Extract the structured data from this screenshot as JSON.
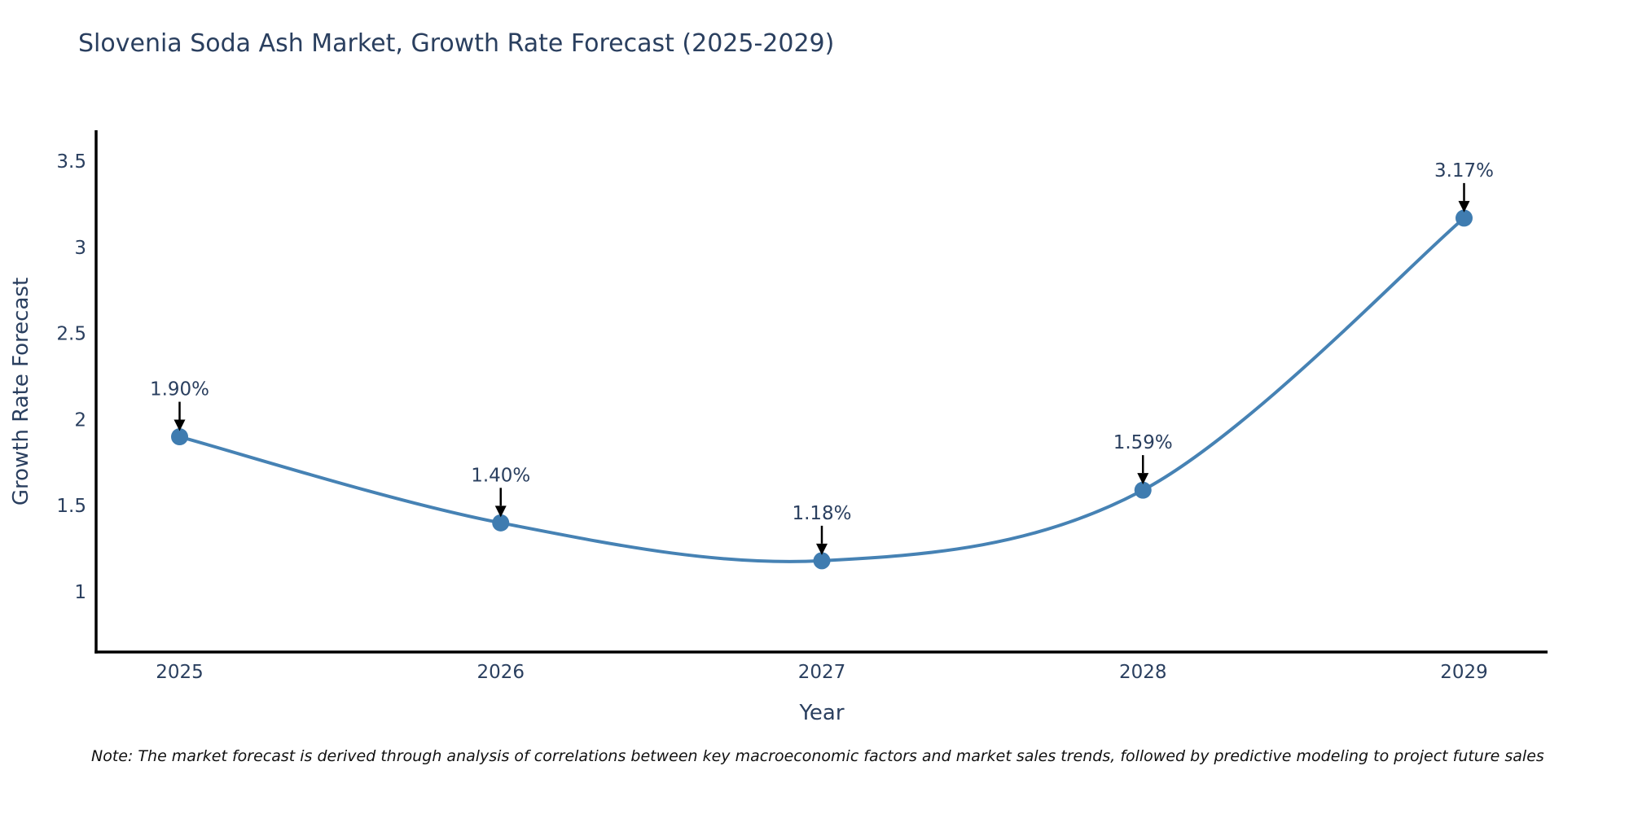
{
  "title": "Slovenia Soda Ash Market, Growth Rate Forecast (2025-2029)",
  "note": "Note: The market forecast is derived through analysis of correlations between key macroeconomic factors and market sales trends, followed by predictive modeling to project future sales",
  "chart_data": {
    "type": "line",
    "line_shape": "spline",
    "title": "Slovenia Soda Ash Market, Growth Rate Forecast (2025-2029)",
    "xlabel": "Year",
    "ylabel": "Growth Rate Forecast",
    "x": [
      2025,
      2026,
      2027,
      2028,
      2029
    ],
    "x_tick_labels": [
      "2025",
      "2026",
      "2027",
      "2028",
      "2029"
    ],
    "values": [
      1.9,
      1.4,
      1.18,
      1.59,
      3.17
    ],
    "point_labels": [
      "1.90%",
      "1.40%",
      "1.18%",
      "1.59%",
      "3.17%"
    ],
    "yticks": [
      1,
      1.5,
      2,
      2.5,
      3,
      3.5
    ],
    "ytick_labels": [
      "1",
      "1.5",
      "2",
      "2.5",
      "3",
      "3.5"
    ],
    "xlim": [
      2024.74,
      2029.26
    ],
    "ylim": [
      0.65,
      3.68
    ],
    "grid": false,
    "legend": "none",
    "colors": {
      "line": "#4682b4",
      "marker": "#3f7cb0",
      "text": "#2a3f5f",
      "axis": "#000000",
      "arrow": "#000000",
      "background": "#ffffff"
    }
  }
}
